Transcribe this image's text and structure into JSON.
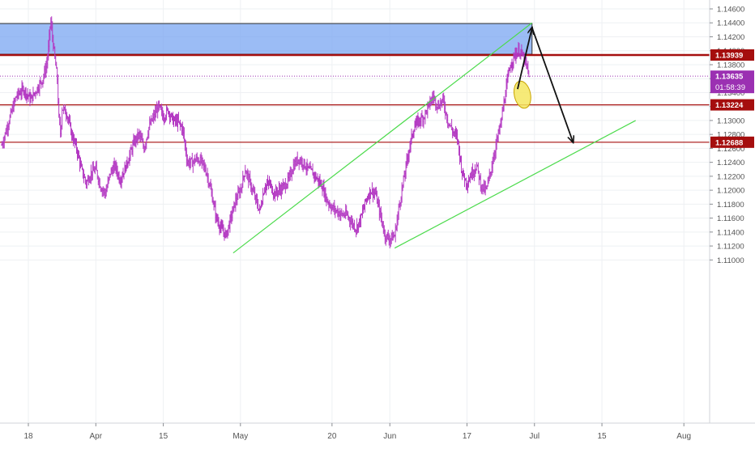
{
  "chart_data": {
    "type": "ohlc",
    "title": "",
    "xlabel": "",
    "ylabel": "",
    "ylim": [
      1.109,
      1.147
    ],
    "grid": true,
    "y_ticks": [
      "1.14600",
      "1.14400",
      "1.14200",
      "1.14000",
      "1.13800",
      "1.13600",
      "1.13400",
      "1.13200",
      "1.13000",
      "1.12800",
      "1.12600",
      "1.12400",
      "1.12200",
      "1.12000",
      "1.11800",
      "1.11600",
      "1.11400",
      "1.11200",
      "1.11000"
    ],
    "y_tick_values": [
      1.146,
      1.144,
      1.142,
      1.14,
      1.138,
      1.136,
      1.134,
      1.132,
      1.13,
      1.128,
      1.126,
      1.124,
      1.122,
      1.12,
      1.118,
      1.116,
      1.114,
      1.112,
      1.11
    ],
    "x_ticks": [
      {
        "label": "18",
        "day": 0
      },
      {
        "label": "Apr",
        "day": 14
      },
      {
        "label": "15",
        "day": 28
      },
      {
        "label": "May",
        "day": 44
      },
      {
        "label": "20",
        "day": 63
      },
      {
        "label": "Jun",
        "day": 75
      },
      {
        "label": "17",
        "day": 91
      },
      {
        "label": "Jul",
        "day": 105
      },
      {
        "label": "15",
        "day": 119
      },
      {
        "label": "Aug",
        "day": 136
      }
    ],
    "price_anchors": [
      [
        -5.5,
        1.1265
      ],
      [
        -4,
        1.13
      ],
      [
        -2.5,
        1.1335
      ],
      [
        -1,
        1.1345
      ],
      [
        0.5,
        1.133
      ],
      [
        2,
        1.1348
      ],
      [
        3,
        1.136
      ],
      [
        3.8,
        1.138
      ],
      [
        4.2,
        1.1405
      ],
      [
        4.6,
        1.1445
      ],
      [
        5,
        1.142
      ],
      [
        5.5,
        1.1388
      ],
      [
        6,
        1.136
      ],
      [
        6.3,
        1.1305
      ],
      [
        6.7,
        1.128
      ],
      [
        7,
        1.1318
      ],
      [
        8,
        1.131
      ],
      [
        9,
        1.128
      ],
      [
        10,
        1.126
      ],
      [
        11,
        1.123
      ],
      [
        12,
        1.121
      ],
      [
        13,
        1.1225
      ],
      [
        14,
        1.123
      ],
      [
        15,
        1.1205
      ],
      [
        16,
        1.1195
      ],
      [
        17,
        1.1225
      ],
      [
        18,
        1.1235
      ],
      [
        19,
        1.1215
      ],
      [
        20,
        1.123
      ],
      [
        21,
        1.125
      ],
      [
        22,
        1.127
      ],
      [
        23,
        1.128
      ],
      [
        24,
        1.126
      ],
      [
        25,
        1.129
      ],
      [
        26,
        1.1305
      ],
      [
        27,
        1.132
      ],
      [
        28,
        1.1305
      ],
      [
        29,
        1.1315
      ],
      [
        30,
        1.13
      ],
      [
        31,
        1.1298
      ],
      [
        32,
        1.1288
      ],
      [
        33,
        1.124
      ],
      [
        34,
        1.124
      ],
      [
        35,
        1.1245
      ],
      [
        36,
        1.124
      ],
      [
        37,
        1.1225
      ],
      [
        38,
        1.1195
      ],
      [
        39,
        1.116
      ],
      [
        40,
        1.1145
      ],
      [
        41,
        1.1135
      ],
      [
        42,
        1.116
      ],
      [
        43,
        1.1185
      ],
      [
        44,
        1.12
      ],
      [
        45,
        1.123
      ],
      [
        46,
        1.121
      ],
      [
        47,
        1.119
      ],
      [
        48,
        1.117
      ],
      [
        49,
        1.1205
      ],
      [
        50,
        1.121
      ],
      [
        51,
        1.1195
      ],
      [
        52,
        1.12
      ],
      [
        53,
        1.1205
      ],
      [
        54,
        1.1215
      ],
      [
        55,
        1.1235
      ],
      [
        56,
        1.1245
      ],
      [
        57,
        1.124
      ],
      [
        58,
        1.123
      ],
      [
        59,
        1.1225
      ],
      [
        60,
        1.1215
      ],
      [
        61,
        1.1205
      ],
      [
        62,
        1.1185
      ],
      [
        63,
        1.1175
      ],
      [
        64,
        1.117
      ],
      [
        65,
        1.1165
      ],
      [
        66,
        1.1165
      ],
      [
        67,
        1.1155
      ],
      [
        68,
        1.1145
      ],
      [
        69,
        1.116
      ],
      [
        70,
        1.1185
      ],
      [
        71,
        1.12
      ],
      [
        72,
        1.1195
      ],
      [
        73,
        1.1165
      ],
      [
        74,
        1.1135
      ],
      [
        75,
        1.113
      ],
      [
        76,
        1.1135
      ],
      [
        77,
        1.118
      ],
      [
        78,
        1.122
      ],
      [
        79,
        1.126
      ],
      [
        80,
        1.129
      ],
      [
        81,
        1.13
      ],
      [
        82,
        1.1305
      ],
      [
        83,
        1.132
      ],
      [
        84,
        1.1335
      ],
      [
        85,
        1.132
      ],
      [
        86,
        1.133
      ],
      [
        87,
        1.13
      ],
      [
        88,
        1.1285
      ],
      [
        89,
        1.1275
      ],
      [
        90,
        1.1225
      ],
      [
        91,
        1.121
      ],
      [
        92,
        1.1225
      ],
      [
        93,
        1.1235
      ],
      [
        94,
        1.1205
      ],
      [
        95,
        1.12
      ],
      [
        96,
        1.123
      ],
      [
        97,
        1.1265
      ],
      [
        98,
        1.1295
      ],
      [
        99,
        1.134
      ],
      [
        100,
        1.138
      ],
      [
        101,
        1.1395
      ],
      [
        102,
        1.14
      ],
      [
        103,
        1.1385
      ],
      [
        104,
        1.1363
      ]
    ],
    "zones": [
      {
        "label": "supply-zone",
        "top": 1.1439,
        "bottom": 1.1395,
        "x_start_day": -6,
        "x_end_day": 104.5,
        "fill": "#7aa6f2"
      }
    ],
    "horizontal_levels": [
      {
        "value": 1.13939,
        "label": "1.13939",
        "color": "#a50e0e",
        "width": 2.5
      },
      {
        "value": 1.13224,
        "label": "1.13224",
        "color": "#a50e0e",
        "width": 1.2
      },
      {
        "value": 1.12688,
        "label": "1.12688",
        "color": "#a50e0e",
        "width": 1.2
      }
    ],
    "current_price": {
      "value": 1.13635,
      "label": "1.13635",
      "countdown": "01:58:39",
      "color": "#9b30b2"
    },
    "trend_lines": [
      {
        "name": "channel-upper",
        "from": [
          42.5,
          1.111
        ],
        "to": [
          104.5,
          1.144
        ],
        "color": "#4cdb4c"
      },
      {
        "name": "channel-lower",
        "from": [
          76,
          1.1117
        ],
        "to": [
          126,
          1.13
        ],
        "color": "#4cdb4c"
      }
    ],
    "arrows": [
      {
        "name": "arrow-up",
        "from": [
          101.5,
          1.1345
        ],
        "to": [
          104.5,
          1.1433
        ]
      },
      {
        "name": "arrow-down",
        "from": [
          104.5,
          1.1433
        ],
        "to": [
          113,
          1.1269
        ]
      }
    ],
    "ellipse": {
      "day": 102.5,
      "value": 1.1337,
      "color": "#f5e660"
    },
    "colors": {
      "candle": "#b338c2",
      "grid": "#eef0f3",
      "axis_text": "#545454",
      "label_text": "#ffffff"
    }
  }
}
